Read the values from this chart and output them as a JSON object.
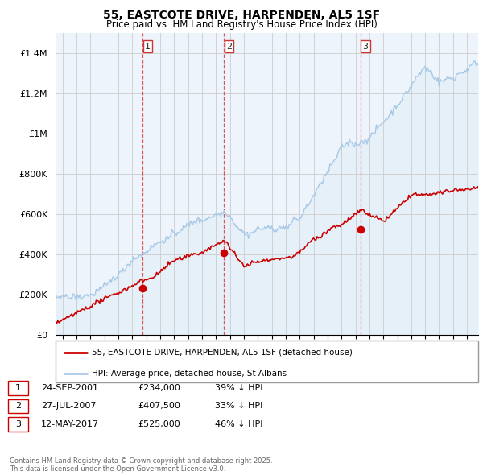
{
  "title1": "55, EASTCOTE DRIVE, HARPENDEN, AL5 1SF",
  "title2": "Price paid vs. HM Land Registry's House Price Index (HPI)",
  "legend_line1": "55, EASTCOTE DRIVE, HARPENDEN, AL5 1SF (detached house)",
  "legend_line2": "HPI: Average price, detached house, St Albans",
  "sale1_date": "24-SEP-2001",
  "sale1_price": 234000,
  "sale1_label": "39% ↓ HPI",
  "sale2_date": "27-JUL-2007",
  "sale2_price": 407500,
  "sale2_label": "33% ↓ HPI",
  "sale3_date": "12-MAY-2017",
  "sale3_price": 525000,
  "sale3_label": "46% ↓ HPI",
  "footer": "Contains HM Land Registry data © Crown copyright and database right 2025.\nThis data is licensed under the Open Government Licence v3.0.",
  "hpi_color": "#a8c8e8",
  "price_color": "#cc0000",
  "bg_fill_color": "#ddeeff",
  "grid_color": "#cccccc",
  "dashed_line_color": "#dd4444",
  "ylim": [
    0,
    1500000
  ],
  "yticks": [
    0,
    200000,
    400000,
    600000,
    800000,
    1000000,
    1200000,
    1400000
  ],
  "sale1_x": 2001.75,
  "sale2_x": 2007.583,
  "sale3_x": 2017.375,
  "xlim_left": 1995.5,
  "xlim_right": 2025.8
}
